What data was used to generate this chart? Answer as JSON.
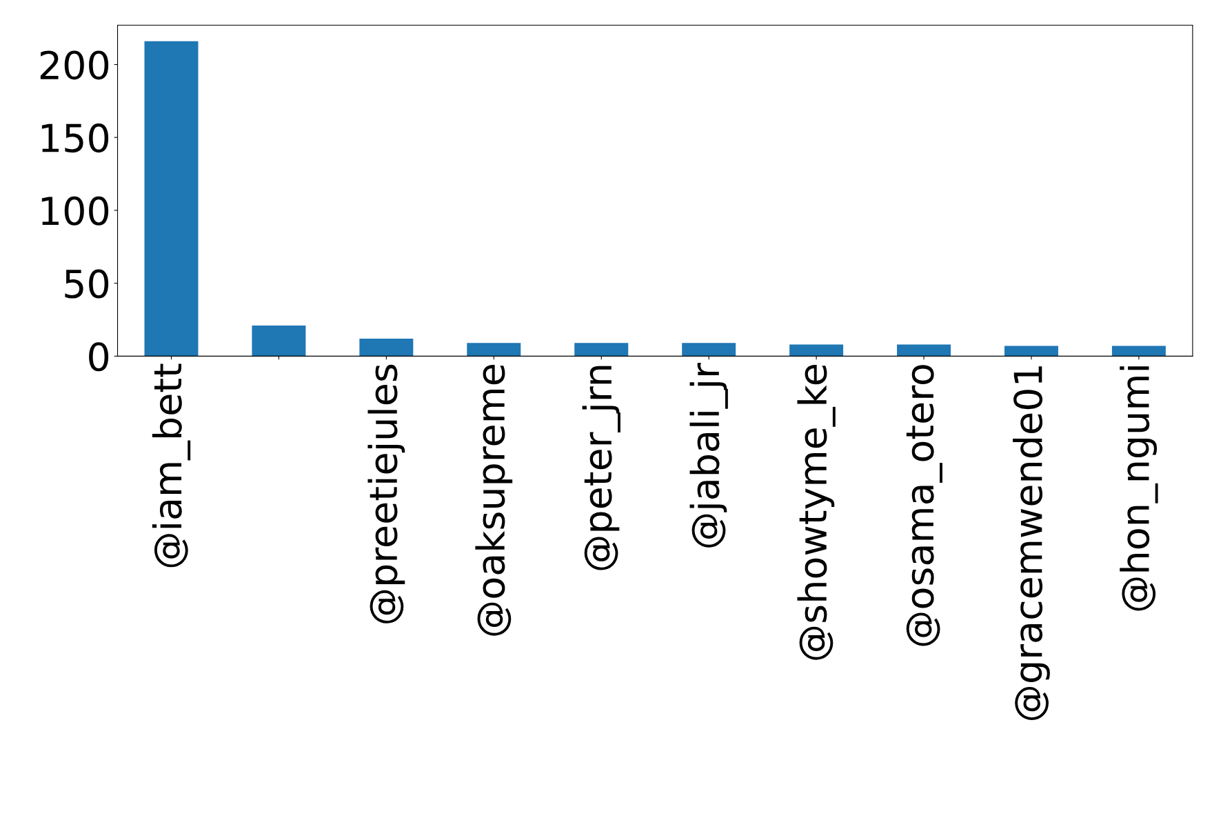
{
  "chart_data": {
    "type": "bar",
    "categories": [
      "@iam_bett",
      null,
      "@preetiejules",
      "@oaksupreme",
      "@peter_jrn",
      "@jabali_jr",
      "@showtyme_ke",
      "@osama_otero",
      "@gracemwende01",
      "@hon_ngumi"
    ],
    "values": [
      216,
      21,
      12,
      9,
      9,
      9,
      8,
      8,
      7,
      7
    ],
    "color": "#1f77b4",
    "ylim": [
      0,
      227
    ],
    "yticks": [
      0,
      50,
      100,
      150,
      200
    ],
    "grid": false,
    "legend": false
  }
}
